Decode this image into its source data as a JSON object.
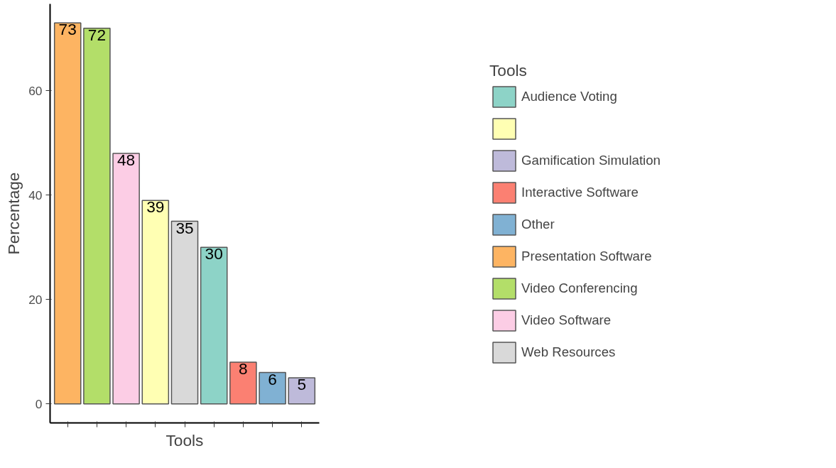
{
  "chart_data": {
    "type": "bar",
    "xlabel": "Tools",
    "ylabel": "Percentage",
    "legend_title": "Tools",
    "categories": [
      null,
      null,
      null,
      null,
      null,
      null,
      null,
      null,
      null
    ],
    "series": [
      {
        "name": "Audience Voting",
        "color": "#8dd3c7",
        "values": [
          null,
          null,
          null,
          null,
          null,
          30,
          null,
          null,
          null
        ]
      },
      {
        "color": "#ffffb3",
        "values": [
          null,
          null,
          null,
          39,
          null,
          null,
          null,
          null,
          null
        ]
      },
      {
        "name": "Gamification Simulation",
        "color": "#bebada",
        "values": [
          null,
          null,
          null,
          null,
          null,
          null,
          null,
          null,
          5
        ]
      },
      {
        "name": "Interactive Software",
        "color": "#fb8072",
        "values": [
          null,
          null,
          null,
          null,
          null,
          null,
          8,
          null,
          null
        ]
      },
      {
        "name": "Other",
        "color": "#80b1d3",
        "values": [
          null,
          null,
          null,
          null,
          null,
          null,
          null,
          6,
          null
        ]
      },
      {
        "name": "Presentation Software",
        "color": "#fdb462",
        "values": [
          73,
          null,
          null,
          null,
          null,
          null,
          null,
          null,
          null
        ]
      },
      {
        "name": "Video Conferencing",
        "color": "#b3de69",
        "values": [
          null,
          72,
          null,
          null,
          null,
          null,
          null,
          null,
          null
        ]
      },
      {
        "name": "Video Software",
        "color": "#fccde5",
        "values": [
          null,
          null,
          48,
          null,
          null,
          null,
          null,
          null,
          null
        ]
      },
      {
        "name": "Web Resources",
        "color": "#d9d9d9",
        "values": [
          null,
          null,
          null,
          null,
          35,
          null,
          null,
          null,
          null
        ]
      }
    ],
    "ylim": [
      -3.65,
      76.65
    ],
    "yticks": [
      0,
      20,
      40,
      60
    ],
    "grid": false,
    "legend": "right",
    "tick_labels": "y",
    "data_labels": true
  }
}
